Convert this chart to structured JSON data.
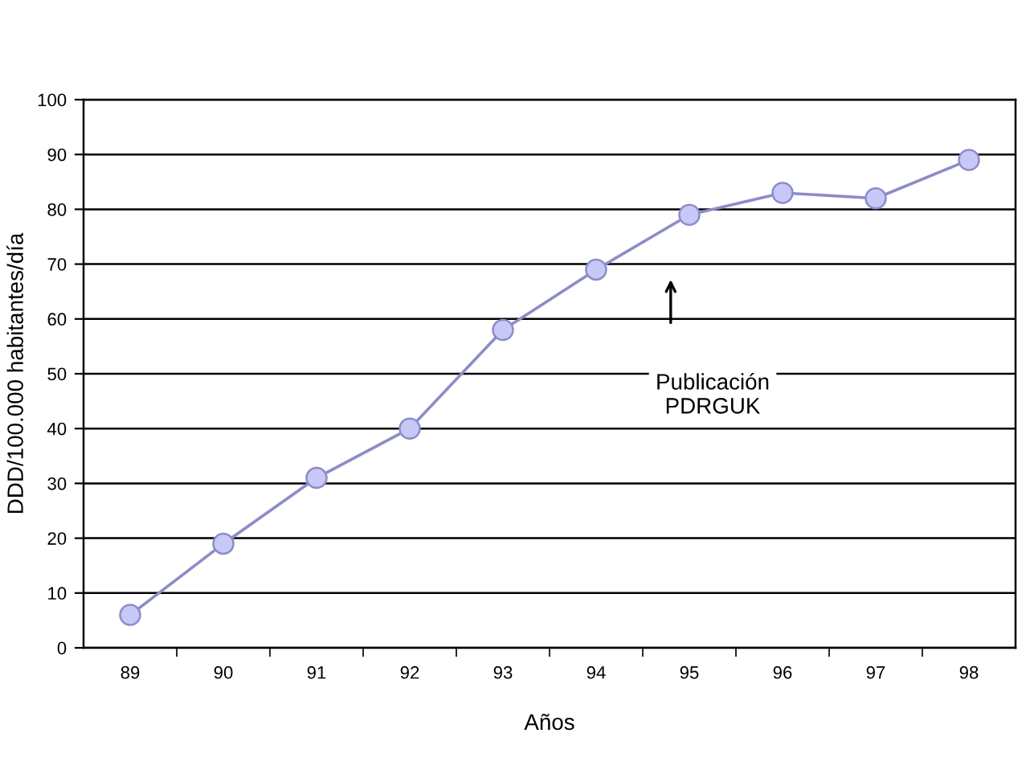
{
  "chart_data": {
    "type": "line",
    "xlabel": "Años",
    "ylabel": "DDD/100.000 habitantes/día",
    "categories": [
      "89",
      "90",
      "91",
      "92",
      "93",
      "94",
      "95",
      "96",
      "97",
      "98"
    ],
    "series": [
      {
        "color": "#8c8cc8",
        "values": [
          6,
          19,
          31,
          40,
          58,
          69,
          79,
          83,
          82,
          89
        ]
      }
    ],
    "marker": "circle",
    "ylim": [
      0,
      100
    ],
    "yticks": [
      0,
      10,
      20,
      30,
      40,
      50,
      60,
      70,
      80,
      90,
      100
    ],
    "grid": "y",
    "annotations": [
      "Publicación\nPDRGUK"
    ]
  }
}
